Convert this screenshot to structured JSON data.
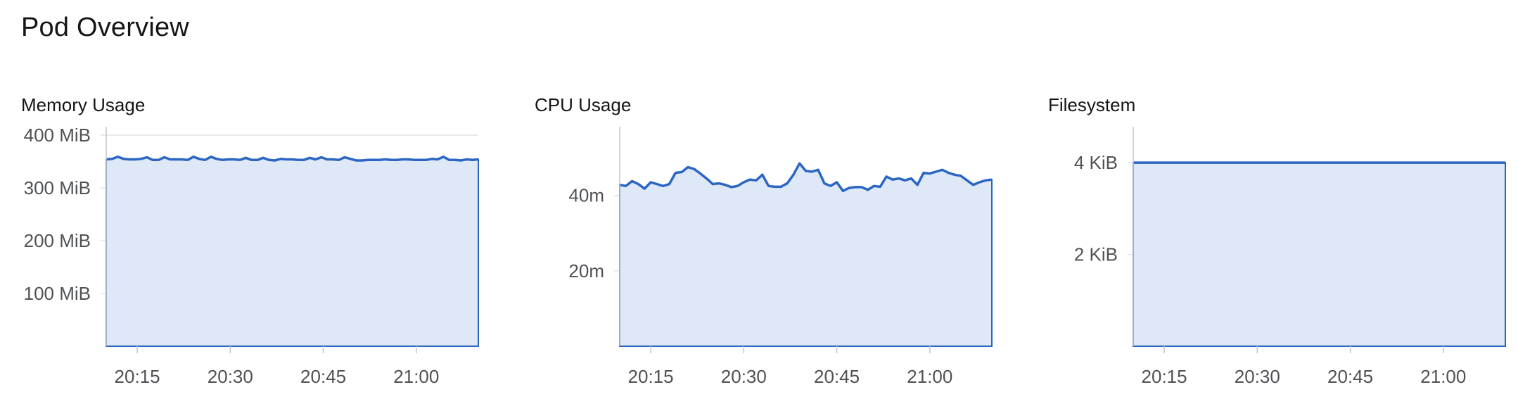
{
  "page": {
    "title": "Pod Overview"
  },
  "colors": {
    "line": "#2b66c3",
    "fill": "#dfe8f6",
    "grid": "#dfe3e8",
    "axis": "#c2c5c9"
  },
  "chart_data": [
    {
      "type": "area",
      "title": "Memory Usage",
      "unit": "MiB",
      "ylim": [
        0,
        400
      ],
      "yticks": [
        100,
        200,
        300,
        400
      ],
      "ytick_labels": [
        "100 MiB",
        "200 MiB",
        "300 MiB",
        "400 MiB"
      ],
      "xlim": [
        "20:10",
        "21:10"
      ],
      "xticks": [
        "20:15",
        "20:30",
        "20:45",
        "21:00"
      ],
      "grid": true,
      "series": [
        {
          "values": [
            354,
            355,
            359,
            355,
            354,
            354,
            355,
            358,
            353,
            353,
            358,
            354,
            354,
            354,
            353,
            359,
            355,
            353,
            359,
            355,
            353,
            354,
            354,
            353,
            357,
            353,
            353,
            357,
            353,
            352,
            355,
            354,
            354,
            353,
            353,
            357,
            354,
            358,
            354,
            354,
            353,
            358,
            355,
            352,
            352,
            353,
            353,
            353,
            354,
            353,
            353,
            354,
            354,
            353,
            353,
            353,
            355,
            354,
            359,
            353,
            353,
            352,
            354,
            353,
            354
          ]
        }
      ]
    },
    {
      "type": "area",
      "title": "CPU Usage",
      "unit": "m",
      "ylim": [
        0,
        56
      ],
      "yticks": [
        20,
        40
      ],
      "ytick_labels": [
        "20m",
        "40m"
      ],
      "xlim": [
        "20:10",
        "21:10"
      ],
      "xticks": [
        "20:15",
        "20:30",
        "20:45",
        "21:00"
      ],
      "grid": true,
      "series": [
        {
          "values": [
            42.8,
            42.5,
            43.8,
            43.0,
            41.8,
            43.5,
            43.0,
            42.5,
            43.0,
            46.0,
            46.2,
            47.5,
            47.0,
            45.8,
            44.5,
            43.0,
            43.2,
            42.8,
            42.2,
            42.5,
            43.5,
            44.2,
            44.0,
            45.5,
            42.5,
            42.3,
            42.3,
            43.2,
            45.5,
            48.5,
            46.5,
            46.3,
            46.8,
            43.2,
            42.5,
            43.5,
            41.2,
            42.0,
            42.2,
            42.2,
            41.5,
            42.5,
            42.3,
            45.0,
            44.2,
            44.5,
            44.0,
            44.5,
            42.8,
            46.0,
            45.8,
            46.3,
            46.8,
            46.0,
            45.5,
            45.2,
            44.0,
            42.8,
            43.5,
            44.0,
            44.2
          ]
        }
      ]
    },
    {
      "type": "area",
      "title": "Filesystem",
      "unit": "KiB",
      "ylim": [
        0,
        4.6
      ],
      "yticks": [
        2,
        4
      ],
      "ytick_labels": [
        "2 KiB",
        "4 KiB"
      ],
      "xlim": [
        "20:10",
        "21:10"
      ],
      "xticks": [
        "20:15",
        "20:30",
        "20:45",
        "21:00"
      ],
      "grid": true,
      "series": [
        {
          "values": [
            4,
            4,
            4,
            4,
            4,
            4,
            4,
            4,
            4,
            4,
            4,
            4,
            4,
            4,
            4,
            4,
            4,
            4,
            4,
            4,
            4,
            4,
            4,
            4,
            4,
            4,
            4,
            4,
            4,
            4,
            4
          ]
        }
      ]
    }
  ]
}
